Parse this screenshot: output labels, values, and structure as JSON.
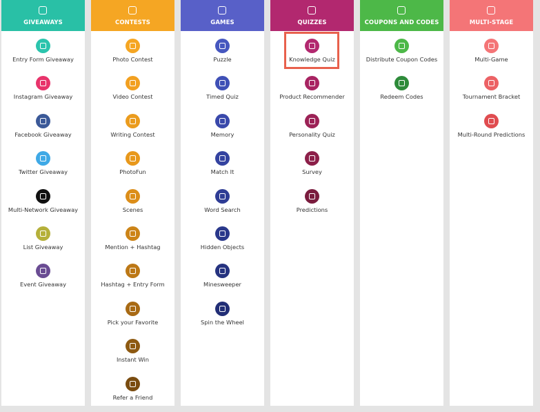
{
  "columns": [
    {
      "title": "GIVEAWAYS",
      "items": [
        "Entry Form Giveaway",
        "Instagram Giveaway",
        "Facebook Giveaway",
        "Twitter Giveaway",
        "Multi-Network Giveaway",
        "List Giveaway",
        "Event Giveaway"
      ]
    },
    {
      "title": "CONTESTS",
      "items": [
        "Photo Contest",
        "Video Contest",
        "Writing Contest",
        "PhotoFun",
        "Scenes",
        "Mention + Hashtag",
        "Hashtag + Entry Form",
        "Pick your Favorite",
        "Instant Win",
        "Refer a Friend"
      ]
    },
    {
      "title": "GAMES",
      "items": [
        "Puzzle",
        "Timed Quiz",
        "Memory",
        "Match It",
        "Word Search",
        "Hidden Objects",
        "Minesweeper",
        "Spin the Wheel"
      ]
    },
    {
      "title": "QUIZZES",
      "items": [
        "Knowledge Quiz",
        "Product Recommender",
        "Personality Quiz",
        "Survey",
        "Predictions"
      ]
    },
    {
      "title": "COUPONS AND CODES",
      "items": [
        "Distribute Coupon Codes",
        "Redeem Codes"
      ]
    },
    {
      "title": "MULTI-STAGE",
      "items": [
        "Multi-Game",
        "Tournament Bracket",
        "Multi-Round Predictions"
      ]
    }
  ]
}
